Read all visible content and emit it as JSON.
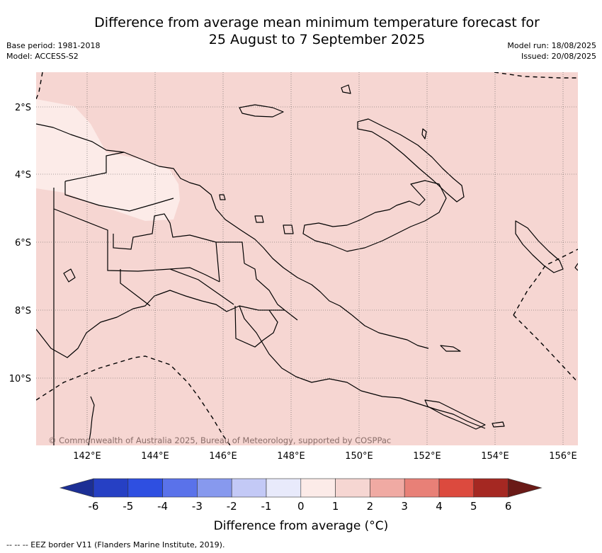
{
  "header": {
    "title_line1": "Difference from average mean minimum temperature forecast for",
    "title_line2": "25 August to 7 September 2025",
    "base_period": "Base period: 1981-2018",
    "model": "Model: ACCESS-S2",
    "model_run": "Model run: 18/08/2025",
    "issued": "Issued: 20/08/2025"
  },
  "map": {
    "region": "Papua New Guinea",
    "lon_ticks": [
      "142°E",
      "144°E",
      "146°E",
      "148°E",
      "150°E",
      "152°E",
      "154°E",
      "156°E"
    ],
    "lat_ticks": [
      "2°S",
      "4°S",
      "6°S",
      "8°S",
      "10°S"
    ],
    "background_color": "#f6d6d2",
    "anomaly_patch_color": "#fcebe8",
    "copyright": "© Commonwealth of Australia 2025, Bureau of Meteorology, supported by COSPPac"
  },
  "colorbar": {
    "title": "Difference from average (°C)",
    "tick_labels": [
      "-6",
      "-5",
      "-4",
      "-3",
      "-2",
      "-1",
      "0",
      "1",
      "2",
      "3",
      "4",
      "5",
      "6"
    ],
    "colors": [
      "#1c2f95",
      "#2640c4",
      "#2e4fe1",
      "#5a72ea",
      "#8799ee",
      "#c3c9f6",
      "#e8eafb",
      "#fcebe8",
      "#f6d6d2",
      "#f0aaa3",
      "#e88077",
      "#dc4a3e",
      "#a52822",
      "#6a1a17"
    ]
  },
  "footer": {
    "legend_text": "--  --  -- EEZ border V11 (Flanders Marine Institute, 2019)."
  }
}
